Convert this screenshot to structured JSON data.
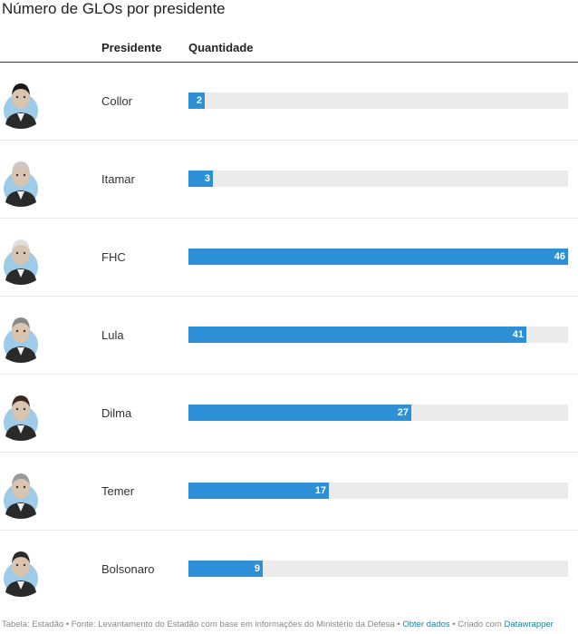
{
  "title": "Número de GLOs por presidente",
  "columns": {
    "president": "Presidente",
    "quantity": "Quantidade"
  },
  "chart_data": {
    "type": "bar",
    "categories": [
      "Collor",
      "Itamar",
      "FHC",
      "Lula",
      "Dilma",
      "Temer",
      "Bolsonaro"
    ],
    "values": [
      2,
      3,
      46,
      41,
      27,
      17,
      9
    ],
    "title": "Número de GLOs por presidente",
    "xlabel": "",
    "ylabel": "Quantidade",
    "ylim": [
      0,
      46
    ],
    "orientation": "horizontal",
    "bar_color": "#2d8fd5",
    "track_color": "#ebebeb",
    "grid": false
  },
  "footer": {
    "prefix": "Tabela: Estadão • Fonte: Levantamento do Estadão com base em informações do Ministério da Defesa •",
    "get_data": "Obter dados",
    "created_with": "• Criado com",
    "tool": "Datawrapper"
  }
}
